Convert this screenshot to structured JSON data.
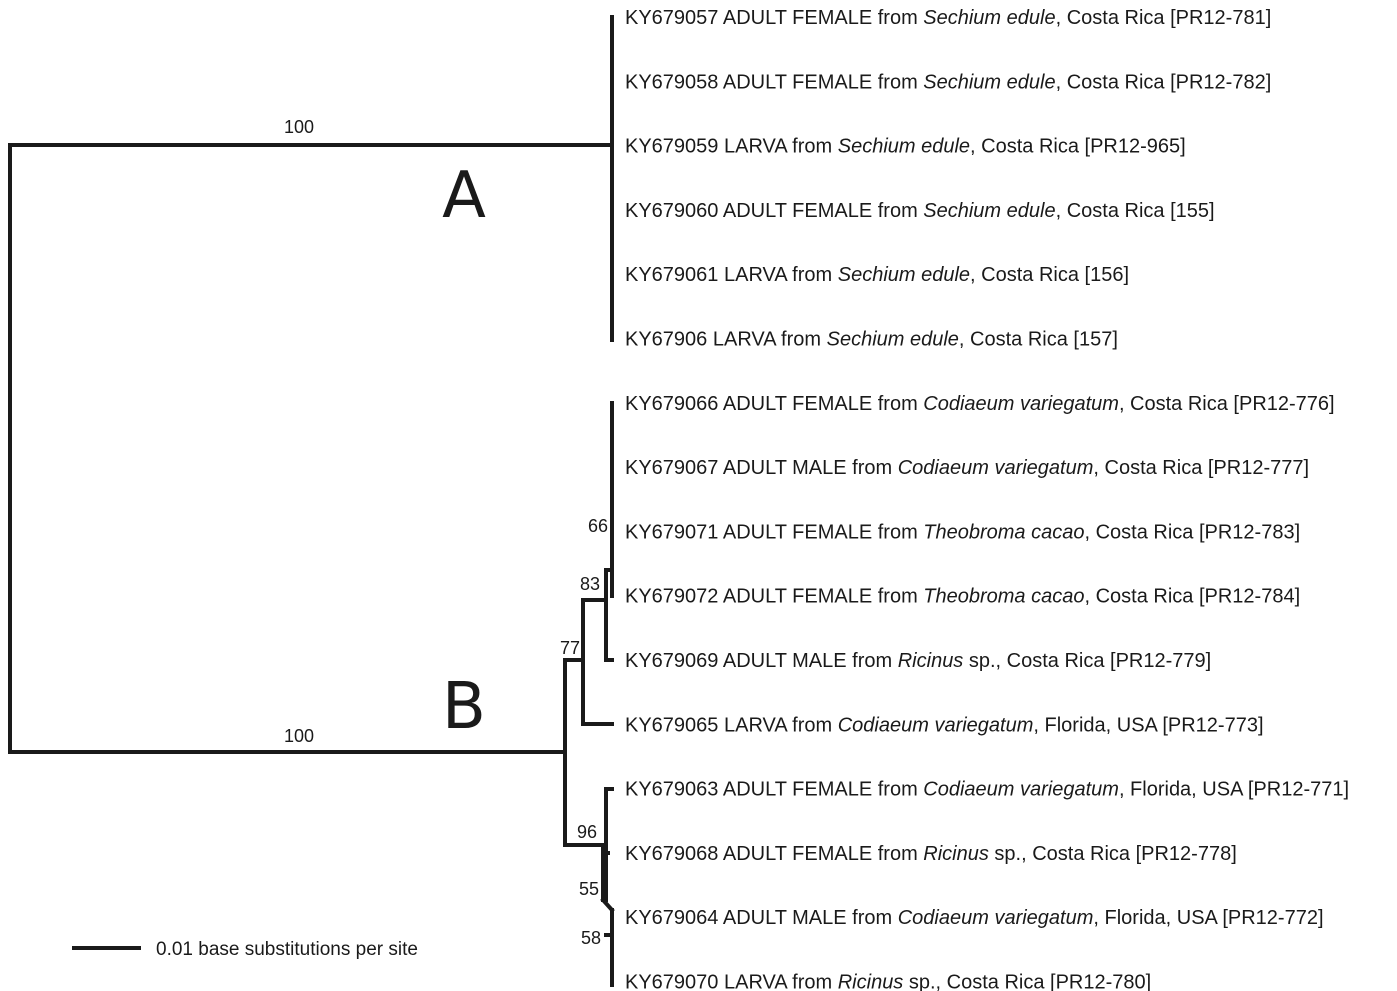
{
  "tree": {
    "clades": [
      {
        "label": "A",
        "support": "100"
      },
      {
        "label": "B",
        "support": "100"
      }
    ],
    "node_support": [
      "66",
      "83",
      "77",
      "96",
      "55",
      "58"
    ],
    "taxa": [
      {
        "pre": "KY679057 ADULT FEMALE from ",
        "host": "Sechium edule",
        "post": ", Costa Rica [PR12-781]"
      },
      {
        "pre": "KY679058 ADULT FEMALE from ",
        "host": "Sechium edule",
        "post": ", Costa Rica [PR12-782]"
      },
      {
        "pre": "KY679059 LARVA from ",
        "host": "Sechium edule",
        "post": ", Costa Rica [PR12-965]"
      },
      {
        "pre": "KY679060 ADULT FEMALE from ",
        "host": "Sechium edule",
        "post": ", Costa Rica [155]"
      },
      {
        "pre": "KY679061 LARVA from ",
        "host": "Sechium edule",
        "post": ", Costa Rica [156]"
      },
      {
        "pre": "KY67906 LARVA from ",
        "host": "Sechium edule",
        "post": ", Costa Rica [157]"
      },
      {
        "pre": "KY679066 ADULT FEMALE from ",
        "host": "Codiaeum variegatum",
        "post": ", Costa Rica [PR12-776]"
      },
      {
        "pre": "KY679067 ADULT MALE from ",
        "host": "Codiaeum variegatum",
        "post": ", Costa Rica [PR12-777]"
      },
      {
        "pre": "KY679071 ADULT FEMALE from ",
        "host": "Theobroma cacao",
        "post": ", Costa Rica [PR12-783]"
      },
      {
        "pre": "KY679072 ADULT FEMALE from ",
        "host": "Theobroma cacao",
        "post": ", Costa Rica [PR12-784]"
      },
      {
        "pre": "KY679069 ADULT MALE from ",
        "host": "Ricinus",
        "post": " sp., Costa Rica [PR12-779]"
      },
      {
        "pre": "KY679065 LARVA from ",
        "host": "Codiaeum variegatum",
        "post": ", Florida, USA [PR12-773]"
      },
      {
        "pre": "KY679063 ADULT FEMALE from ",
        "host": "Codiaeum variegatum",
        "post": ", Florida, USA [PR12-771]"
      },
      {
        "pre": "KY679068 ADULT FEMALE from ",
        "host": "Ricinus",
        "post": " sp., Costa Rica [PR12-778]"
      },
      {
        "pre": "KY679064 ADULT MALE from ",
        "host": "Codiaeum variegatum",
        "post": ", Florida, USA [PR12-772]"
      },
      {
        "pre": "KY679070 LARVA from ",
        "host": "Ricinus",
        "post": " sp., Costa Rica [PR12-780]"
      }
    ],
    "scale_bar": {
      "label": "0.01 base substitutions per site"
    }
  }
}
